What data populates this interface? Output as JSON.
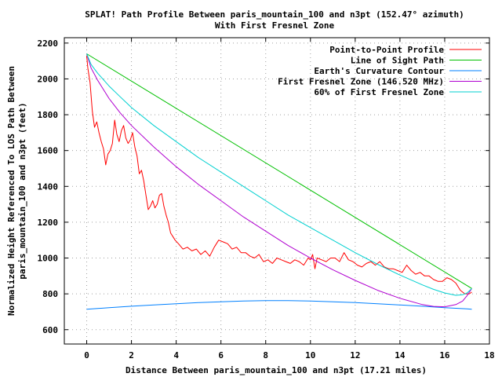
{
  "chart_data": {
    "type": "line",
    "title_line1": "SPLAT! Path Profile Between paris_mountain_100 and n3pt (152.47° azimuth)",
    "title_line2": "With First Fresnel Zone",
    "xlabel": "Distance Between paris_mountain_100 and n3pt (17.21 miles)",
    "ylabel_line1": "Normalized Height Referenced To LOS Path Between",
    "ylabel_line2": "paris_mountain_100 and n3pt (feet)",
    "xlim": [
      -1,
      18
    ],
    "ylim": [
      520,
      2230
    ],
    "x_ticks": [
      0,
      2,
      4,
      6,
      8,
      10,
      12,
      14,
      16,
      18
    ],
    "y_ticks": [
      600,
      800,
      1000,
      1200,
      1400,
      1600,
      1800,
      2000,
      2200
    ],
    "grid": true,
    "legend_position": "top-right",
    "series": [
      {
        "name": "Point-to-Point Profile",
        "color": "#ff0000",
        "x": [
          0,
          0.05,
          0.15,
          0.25,
          0.35,
          0.45,
          0.55,
          0.65,
          0.75,
          0.85,
          0.95,
          1.05,
          1.15,
          1.25,
          1.35,
          1.45,
          1.55,
          1.65,
          1.75,
          1.85,
          1.95,
          2.05,
          2.15,
          2.25,
          2.35,
          2.45,
          2.55,
          2.65,
          2.75,
          2.85,
          2.95,
          3.05,
          3.15,
          3.25,
          3.35,
          3.45,
          3.55,
          3.65,
          3.75,
          3.85,
          3.95,
          4.1,
          4.3,
          4.5,
          4.7,
          4.9,
          5.1,
          5.3,
          5.5,
          5.7,
          5.9,
          6.1,
          6.3,
          6.5,
          6.7,
          6.9,
          7.1,
          7.3,
          7.5,
          7.7,
          7.9,
          8.1,
          8.3,
          8.5,
          8.7,
          8.9,
          9.1,
          9.3,
          9.5,
          9.7,
          9.9,
          10.0,
          10.1,
          10.2,
          10.3,
          10.5,
          10.7,
          10.9,
          11.1,
          11.3,
          11.5,
          11.7,
          11.9,
          12.1,
          12.3,
          12.5,
          12.7,
          12.9,
          13.1,
          13.3,
          13.5,
          13.7,
          13.9,
          14.1,
          14.3,
          14.5,
          14.7,
          14.9,
          15.1,
          15.3,
          15.5,
          15.7,
          15.9,
          16.1,
          16.3,
          16.5,
          16.7,
          16.9,
          17.1,
          17.21
        ],
        "y": [
          2130,
          2060,
          1980,
          1820,
          1730,
          1760,
          1700,
          1650,
          1610,
          1520,
          1580,
          1600,
          1640,
          1770,
          1690,
          1650,
          1710,
          1740,
          1670,
          1640,
          1660,
          1700,
          1620,
          1570,
          1470,
          1490,
          1430,
          1350,
          1270,
          1290,
          1320,
          1280,
          1300,
          1350,
          1360,
          1290,
          1240,
          1200,
          1140,
          1120,
          1100,
          1080,
          1050,
          1060,
          1040,
          1050,
          1020,
          1040,
          1010,
          1060,
          1100,
          1090,
          1080,
          1050,
          1060,
          1030,
          1030,
          1010,
          1000,
          1020,
          980,
          990,
          970,
          1000,
          990,
          980,
          970,
          990,
          980,
          960,
          1000,
          990,
          1020,
          940,
          1000,
          990,
          980,
          1000,
          1000,
          980,
          1030,
          990,
          980,
          960,
          950,
          970,
          980,
          960,
          980,
          950,
          940,
          940,
          930,
          920,
          960,
          930,
          910,
          920,
          900,
          900,
          880,
          870,
          870,
          890,
          880,
          860,
          820,
          800,
          800,
          810
        ]
      },
      {
        "name": "Line of Sight Path",
        "color": "#00c000",
        "x": [
          0,
          17.21
        ],
        "y": [
          2140,
          830
        ]
      },
      {
        "name": "Earth's Curvature Contour",
        "color": "#0080ff",
        "x": [
          0,
          1,
          2,
          3,
          4,
          5,
          6,
          7,
          8,
          9,
          10,
          11,
          12,
          13,
          14,
          15,
          16,
          17,
          17.21
        ],
        "y": [
          714,
          723,
          731,
          738,
          745,
          751,
          756,
          760,
          762,
          762,
          760,
          756,
          751,
          745,
          738,
          731,
          723,
          716,
          714
        ]
      },
      {
        "name": "First Fresnel Zone (146.520 MHz)",
        "color": "#b000d0",
        "x": [
          0,
          0.2,
          0.5,
          1,
          1.5,
          2,
          3,
          4,
          5,
          6,
          7,
          8,
          9,
          10,
          11,
          12,
          13,
          14,
          15,
          15.5,
          16,
          16.5,
          16.8,
          17.0,
          17.21
        ],
        "y": [
          2140,
          2060,
          1990,
          1890,
          1810,
          1740,
          1620,
          1510,
          1410,
          1320,
          1230,
          1150,
          1070,
          1000,
          935,
          875,
          820,
          775,
          740,
          730,
          728,
          740,
          760,
          790,
          830
        ]
      },
      {
        "name": "60% of First Fresnel Zone",
        "color": "#00d0d0",
        "x": [
          0,
          0.2,
          0.5,
          1,
          1.5,
          2,
          3,
          4,
          5,
          6,
          7,
          8,
          9,
          10,
          11,
          12,
          13,
          14,
          15,
          15.5,
          16,
          16.5,
          16.8,
          17.0,
          17.21
        ],
        "y": [
          2140,
          2080,
          2030,
          1960,
          1900,
          1840,
          1740,
          1650,
          1560,
          1480,
          1400,
          1320,
          1240,
          1170,
          1100,
          1030,
          965,
          905,
          850,
          825,
          805,
          792,
          795,
          805,
          830
        ]
      }
    ]
  }
}
